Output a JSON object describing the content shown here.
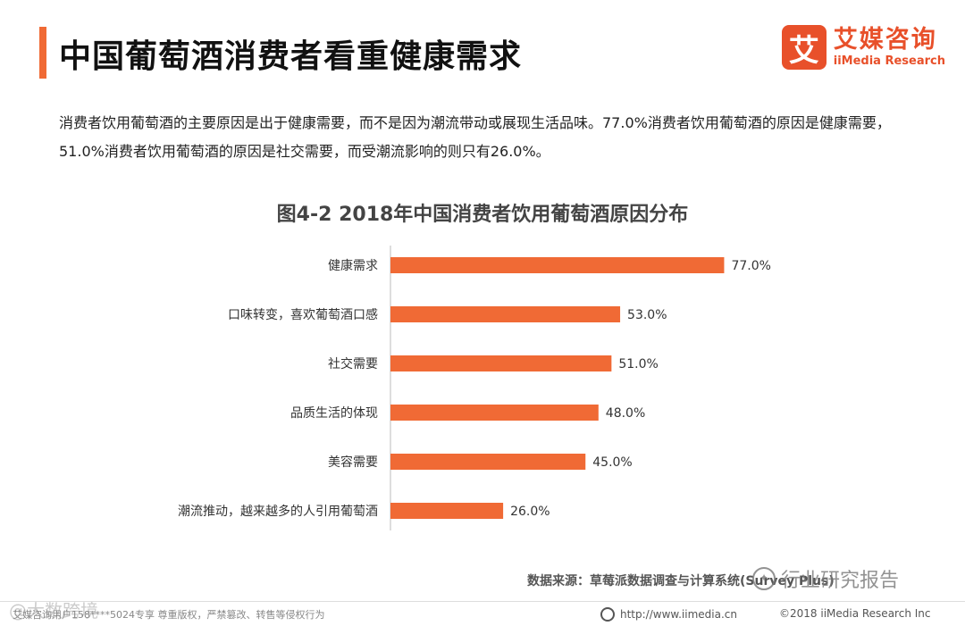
{
  "header": {
    "title": "中国葡萄酒消费者看重健康需求",
    "logo_mark": "艾",
    "logo_cn": "艾媒咨询",
    "logo_en": "iiMedia Research"
  },
  "description": "消费者饮用葡萄酒的主要原因是出于健康需要，而不是因为潮流带动或展现生活品味。77.0%消费者饮用葡萄酒的原因是健康需要，51.0%消费者饮用葡萄酒的原因是社交需要，而受潮流影响的则只有26.0%。",
  "chart_data": {
    "type": "bar",
    "orientation": "horizontal",
    "title": "图4-2 2018年中国消费者饮用葡萄酒原因分布",
    "categories": [
      "健康需求",
      "口味转变，喜欢葡萄酒口感",
      "社交需要",
      "品质生活的体现",
      "美容需要",
      "潮流推动，越来越多的人引用葡萄酒"
    ],
    "values": [
      77.0,
      53.0,
      51.0,
      48.0,
      45.0,
      26.0
    ],
    "data_labels": [
      "77.0%",
      "53.0%",
      "51.0%",
      "48.0%",
      "45.0%",
      "26.0%"
    ],
    "xlim": [
      0,
      100
    ],
    "bar_color": "#f06a35",
    "grid": false,
    "legend": "none"
  },
  "source": "数据来源：草莓派数据调查与计算系统(Survey Plus)",
  "watermark": "行业研究报告",
  "footer": {
    "left": "艾媒咨询用户158****5024专享 尊重版权，严禁篡改、转售等侵权行为",
    "left_wm": "@大数跨境",
    "url": "http://www.iimedia.cn",
    "copyright": "©2018  iiMedia Research  Inc"
  }
}
